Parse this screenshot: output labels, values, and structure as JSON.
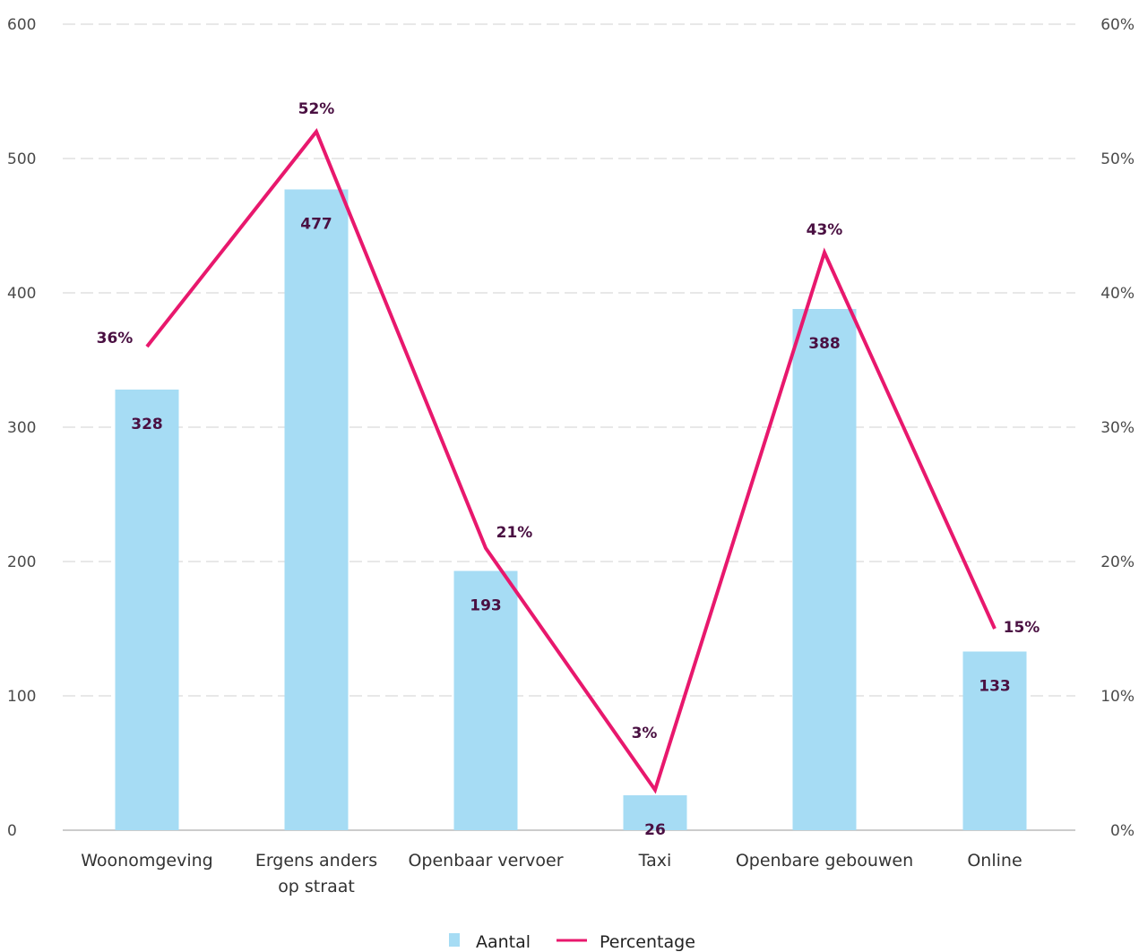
{
  "chart_data": {
    "type": "bar",
    "categories": [
      [
        "Woonomgeving"
      ],
      [
        "Ergens anders",
        "op straat"
      ],
      [
        "Openbaar vervoer"
      ],
      [
        "Taxi"
      ],
      [
        "Openbare gebouwen"
      ],
      [
        "Online"
      ]
    ],
    "series": [
      {
        "name": "Aantal",
        "type": "bar",
        "axis": "left",
        "values": [
          328,
          477,
          193,
          26,
          388,
          133
        ],
        "labels": [
          "328",
          "477",
          "193",
          "26",
          "388",
          "133"
        ],
        "color": "#a6dcf4"
      },
      {
        "name": "Percentage",
        "type": "line",
        "axis": "right",
        "values": [
          36,
          52,
          21,
          3,
          43,
          15
        ],
        "labels": [
          "36%",
          "52%",
          "21%",
          "3%",
          "43%",
          "15%"
        ],
        "color": "#e8186d"
      }
    ],
    "y_left": {
      "ylim": [
        0,
        600
      ],
      "ticks": [
        "0",
        "100",
        "200",
        "300",
        "400",
        "500",
        "600"
      ]
    },
    "y_right": {
      "ylim": [
        0,
        60
      ],
      "ticks": [
        "0%",
        "10%",
        "20%",
        "30%",
        "40%",
        "50%",
        "60%"
      ]
    },
    "grid": true,
    "legend": "bottom-center",
    "colors": {
      "bar": "#a6dcf4",
      "line": "#e8186d",
      "value_label": "#4a1042",
      "grid": "#d0d0d0"
    }
  }
}
